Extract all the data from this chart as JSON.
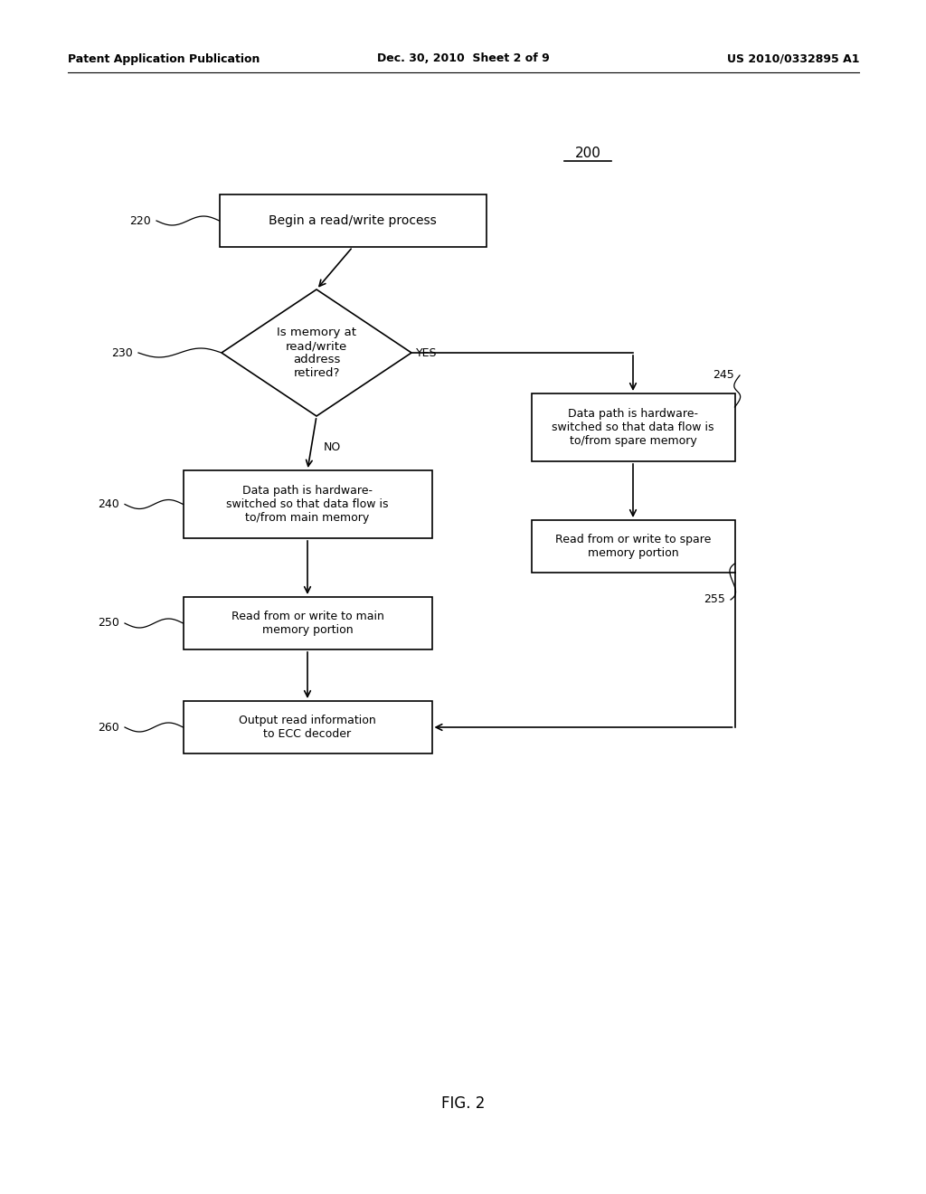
{
  "bg_color": "#ffffff",
  "header_left": "Patent Application Publication",
  "header_mid": "Dec. 30, 2010  Sheet 2 of 9",
  "header_right": "US 2010/0332895 A1",
  "fig_label": "FIG. 2",
  "diagram_label": "200",
  "figsize": [
    10.24,
    13.2
  ],
  "dpi": 100,
  "box220_text": "Begin a read/write process",
  "box230_text": "Is memory at\nread/write\naddress\nretired?",
  "box240_text": "Data path is hardware-\nswitched so that data flow is\nto/from main memory",
  "box245_text": "Data path is hardware-\nswitched so that data flow is\nto/from spare memory",
  "box250_text": "Read from or write to main\nmemory portion",
  "box255_text": "Read from or write to spare\nmemory portion",
  "box260_text": "Output read information\nto ECC decoder"
}
